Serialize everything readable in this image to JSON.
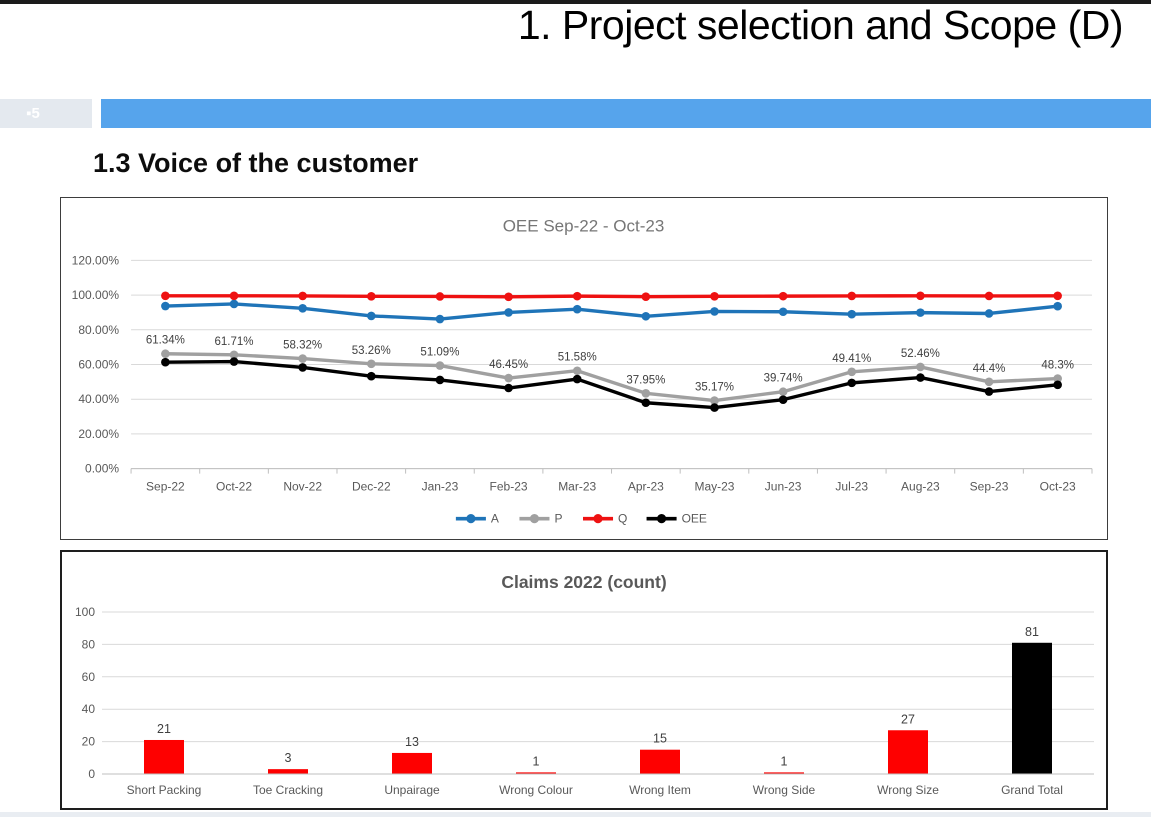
{
  "page": {
    "title": "1. Project selection and Scope (D)",
    "slide_number": "▪5",
    "section_heading": "1.3 Voice of the customer",
    "accent_bar_color": "#56A4EC",
    "top_bar_color": "#1B1B1B"
  },
  "chart_data": [
    {
      "type": "line",
      "title": "OEE Sep-22 - Oct-23",
      "categories": [
        "Sep-22",
        "Oct-22",
        "Nov-22",
        "Dec-22",
        "Jan-23",
        "Feb-23",
        "Mar-23",
        "Apr-23",
        "May-23",
        "Jun-23",
        "Jul-23",
        "Aug-23",
        "Sep-23",
        "Oct-23"
      ],
      "series": [
        {
          "name": "A",
          "color": "#1F74B8",
          "values": [
            93.7,
            94.9,
            92.4,
            88.0,
            86.2,
            90.0,
            91.9,
            87.8,
            90.6,
            90.4,
            89.0,
            89.9,
            89.4,
            93.6
          ]
        },
        {
          "name": "P",
          "color": "#A0A0A0",
          "values": [
            66.2,
            65.6,
            63.4,
            60.4,
            59.4,
            52.2,
            56.4,
            43.4,
            39.2,
            44.3,
            55.8,
            58.6,
            50.0,
            51.9
          ]
        },
        {
          "name": "Q",
          "color": "#EE1111",
          "values": [
            99.6,
            99.6,
            99.5,
            99.3,
            99.2,
            99.0,
            99.4,
            99.1,
            99.3,
            99.4,
            99.5,
            99.6,
            99.5,
            99.6
          ]
        },
        {
          "name": "OEE",
          "color": "#000000",
          "values": [
            61.34,
            61.71,
            58.32,
            53.26,
            51.09,
            46.45,
            51.58,
            37.95,
            35.17,
            39.74,
            49.41,
            52.46,
            44.4,
            48.3
          ]
        }
      ],
      "data_labels": {
        "series": "OEE",
        "anchor_series": "P",
        "values": [
          "61.34%",
          "61.71%",
          "58.32%",
          "53.26%",
          "51.09%",
          "46.45%",
          "51.58%",
          "37.95%",
          "35.17%",
          "39.74%",
          "49.41%",
          "52.46%",
          "44.4%",
          "48.3%"
        ]
      },
      "ylim": [
        0,
        120
      ],
      "ytick_step": 20,
      "yticks": [
        "0.00%",
        "20.00%",
        "40.00%",
        "60.00%",
        "80.00%",
        "100.00%",
        "120.00%"
      ],
      "legend": [
        "A",
        "P",
        "Q",
        "OEE"
      ],
      "legend_position": "bottom",
      "grid": true
    },
    {
      "type": "bar",
      "title": "Claims 2022 (count)",
      "categories": [
        "Short Packing",
        "Toe Cracking",
        "Unpairage",
        "Wrong Colour",
        "Wrong Item",
        "Wrong Side",
        "Wrong Size",
        "Grand Total"
      ],
      "values": [
        21,
        3,
        13,
        1,
        15,
        1,
        27,
        81
      ],
      "data_labels": [
        "21",
        "3",
        "13",
        "1",
        "15",
        "1",
        "27",
        "81"
      ],
      "bar_colors": [
        "#FE0000",
        "#FE0000",
        "#FE0000",
        "#FE0000",
        "#FE0000",
        "#FE0000",
        "#FE0000",
        "#000000"
      ],
      "ylim": [
        0,
        100
      ],
      "ytick_step": 20,
      "yticks": [
        "0",
        "20",
        "40",
        "60",
        "80",
        "100"
      ],
      "grid": true
    }
  ]
}
